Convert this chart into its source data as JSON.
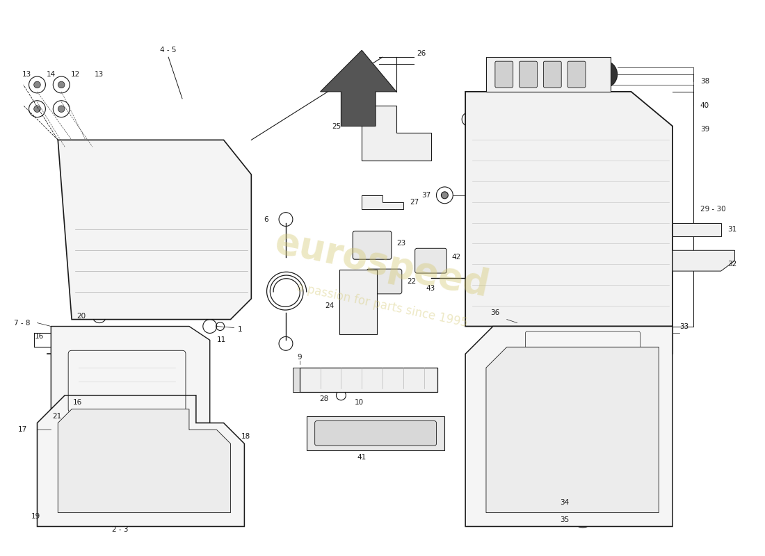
{
  "background_color": "#ffffff",
  "line_color": "#1a1a1a",
  "watermark_color": "#d4c870",
  "watermark_alpha": 0.4,
  "label_color": "#1a1a1a",
  "figsize": [
    11.0,
    8.0
  ],
  "dpi": 100
}
